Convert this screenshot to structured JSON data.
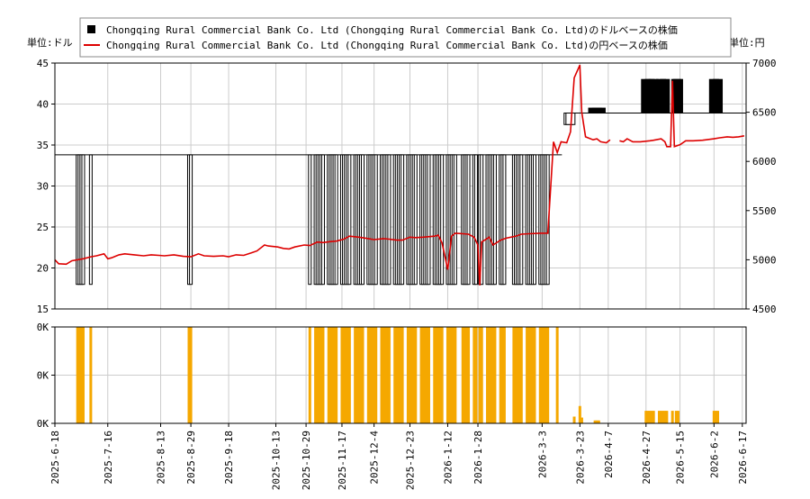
{
  "chart_data": [
    {
      "type": "bar+line",
      "title": "",
      "left_axis_unit": "単位:ドル",
      "right_axis_unit": "単位:円",
      "legend": {
        "placement": "top",
        "entries": [
          {
            "label": "Chongqing Rural Commercial Bank Co. Ltd (Chongqing Rural Commercial Bank Co. Ltd)のドルベースの株価",
            "color": "#000000",
            "kind": "candle"
          },
          {
            "label": "Chongqing Rural Commercial Bank Co. Ltd (Chongqing Rural Commercial Bank Co. Ltd)の円ベースの株価",
            "color": "#dd0000",
            "kind": "line"
          }
        ]
      },
      "ylim_left": [
        15,
        45
      ],
      "yticks_left": [
        "15",
        "20",
        "25",
        "30",
        "35",
        "40",
        "45"
      ],
      "ylim_right": [
        4500,
        7000
      ],
      "yticks_right": [
        "4500",
        "5000",
        "5500",
        "6000",
        "6500",
        "7000"
      ],
      "grid": true,
      "usd_candles": {
        "groups": [
          {
            "from": "2025-06-30",
            "to": "2025-07-03"
          },
          {
            "from": "2025-07-07",
            "to": "2025-07-07"
          },
          {
            "from": "2025-08-28",
            "to": "2025-08-29"
          },
          {
            "from": "2025-10-31",
            "to": "2026-01-16"
          },
          {
            "from": "2026-01-20",
            "to": "2026-01-27"
          },
          {
            "from": "2026-01-29",
            "to": "2026-02-11"
          },
          {
            "from": "2026-02-16",
            "to": "2026-03-06"
          }
        ],
        "open": 33.8,
        "close": 33.8,
        "high": 33.8,
        "low": 18.0,
        "reference_price": 33.8,
        "late_candles": [
          {
            "date": "2026-03-17",
            "open": 38.9,
            "close": 37.5,
            "high": 38.9,
            "low": 37.5
          },
          {
            "date": "2026-03-18",
            "open": 38.9,
            "close": 37.5,
            "high": 38.9,
            "low": 37.5
          },
          {
            "date": "2026-03-30",
            "open": 38.9,
            "close": 39.5,
            "high": 39.5,
            "low": 38.9
          },
          {
            "date": "2026-04-01",
            "open": 38.9,
            "close": 39.5,
            "high": 39.5,
            "low": 38.9
          },
          {
            "date": "2026-04-03",
            "open": 38.9,
            "close": 39.5,
            "high": 39.5,
            "low": 38.9
          },
          {
            "date": "2026-04-27",
            "open": 38.9,
            "close": 43.0,
            "high": 43.0,
            "low": 38.9
          },
          {
            "date": "2026-04-29",
            "open": 38.9,
            "close": 43.0,
            "high": 43.0,
            "low": 38.9
          },
          {
            "date": "2026-05-01",
            "open": 38.9,
            "close": 43.0,
            "high": 43.0,
            "low": 38.9
          },
          {
            "date": "2026-05-05",
            "open": 38.9,
            "close": 43.0,
            "high": 43.0,
            "low": 38.9
          },
          {
            "date": "2026-05-07",
            "open": 38.9,
            "close": 43.0,
            "high": 43.0,
            "low": 38.9
          },
          {
            "date": "2026-05-13",
            "open": 38.9,
            "close": 43.0,
            "high": 43.0,
            "low": 38.9
          },
          {
            "date": "2026-05-14",
            "open": 38.9,
            "close": 43.0,
            "high": 43.0,
            "low": 38.9
          },
          {
            "date": "2026-06-02",
            "open": 38.9,
            "close": 43.0,
            "high": 43.0,
            "low": 38.9
          },
          {
            "date": "2026-06-04",
            "open": 38.9,
            "close": 43.0,
            "high": 43.0,
            "low": 38.9
          }
        ],
        "late_reference_price": 38.9,
        "late_reference_from": "2026-03-16"
      },
      "jpy_line": [
        [
          "2025-06-18",
          5000
        ],
        [
          "2025-06-20",
          4960
        ],
        [
          "2025-06-24",
          4955
        ],
        [
          "2025-06-27",
          4990
        ],
        [
          "2025-07-03",
          5010
        ],
        [
          "2025-07-07",
          5030
        ],
        [
          "2025-07-10",
          5040
        ],
        [
          "2025-07-14",
          5060
        ],
        [
          "2025-07-16",
          5010
        ],
        [
          "2025-07-18",
          5020
        ],
        [
          "2025-07-22",
          5050
        ],
        [
          "2025-07-25",
          5060
        ],
        [
          "2025-07-30",
          5050
        ],
        [
          "2025-08-04",
          5040
        ],
        [
          "2025-08-08",
          5050
        ],
        [
          "2025-08-12",
          5045
        ],
        [
          "2025-08-15",
          5040
        ],
        [
          "2025-08-20",
          5050
        ],
        [
          "2025-08-25",
          5035
        ],
        [
          "2025-08-29",
          5030
        ],
        [
          "2025-09-02",
          5060
        ],
        [
          "2025-09-05",
          5040
        ],
        [
          "2025-09-10",
          5035
        ],
        [
          "2025-09-15",
          5040
        ],
        [
          "2025-09-18",
          5030
        ],
        [
          "2025-09-22",
          5050
        ],
        [
          "2025-09-26",
          5045
        ],
        [
          "2025-09-30",
          5070
        ],
        [
          "2025-10-03",
          5090
        ],
        [
          "2025-10-07",
          5150
        ],
        [
          "2025-10-09",
          5140
        ],
        [
          "2025-10-14",
          5130
        ],
        [
          "2025-10-17",
          5115
        ],
        [
          "2025-10-20",
          5110
        ],
        [
          "2025-10-23",
          5130
        ],
        [
          "2025-10-28",
          5150
        ],
        [
          "2025-10-31",
          5145
        ],
        [
          "2025-11-04",
          5180
        ],
        [
          "2025-11-07",
          5175
        ],
        [
          "2025-11-11",
          5185
        ],
        [
          "2025-11-14",
          5190
        ],
        [
          "2025-11-18",
          5210
        ],
        [
          "2025-11-21",
          5240
        ],
        [
          "2025-11-26",
          5230
        ],
        [
          "2025-12-01",
          5215
        ],
        [
          "2025-12-04",
          5205
        ],
        [
          "2025-12-09",
          5215
        ],
        [
          "2025-12-12",
          5210
        ],
        [
          "2025-12-16",
          5200
        ],
        [
          "2025-12-19",
          5200
        ],
        [
          "2025-12-23",
          5230
        ],
        [
          "2025-12-26",
          5225
        ],
        [
          "2025-12-30",
          5230
        ],
        [
          "2026-01-05",
          5240
        ],
        [
          "2026-01-07",
          5250
        ],
        [
          "2026-01-09",
          5170
        ],
        [
          "2026-01-12",
          4900
        ],
        [
          "2026-01-14",
          5240
        ],
        [
          "2026-01-16",
          5270
        ],
        [
          "2026-01-20",
          5265
        ],
        [
          "2026-01-23",
          5260
        ],
        [
          "2026-01-26",
          5230
        ],
        [
          "2026-01-28",
          5150
        ],
        [
          "2026-01-29",
          4740
        ],
        [
          "2026-01-30",
          5180
        ],
        [
          "2026-02-03",
          5230
        ],
        [
          "2026-02-05",
          5150
        ],
        [
          "2026-02-09",
          5200
        ],
        [
          "2026-02-12",
          5220
        ],
        [
          "2026-02-17",
          5240
        ],
        [
          "2026-02-20",
          5260
        ],
        [
          "2026-02-24",
          5265
        ],
        [
          "2026-03-02",
          5270
        ],
        [
          "2026-03-06",
          5270
        ],
        [
          "2026-03-09",
          6200
        ],
        [
          "2026-03-11",
          6090
        ],
        [
          "2026-03-13",
          6200
        ],
        [
          "2026-03-16",
          6190
        ],
        [
          "2026-03-18",
          6300
        ],
        [
          "2026-03-20",
          6850
        ],
        [
          "2026-03-23",
          6980
        ],
        [
          "2026-03-24",
          6500
        ],
        [
          "2026-03-26",
          6250
        ],
        [
          "2026-03-30",
          6220
        ],
        [
          "2026-04-01",
          6230
        ],
        [
          "2026-04-03",
          6200
        ],
        [
          "2026-04-06",
          6190
        ],
        [
          "2026-04-08",
          6220
        ],
        [
          "2026-04-13",
          6210
        ],
        [
          "2026-04-15",
          6200
        ],
        [
          "2026-04-17",
          6230
        ],
        [
          "2026-04-20",
          6200
        ],
        [
          "2026-04-24",
          6200
        ],
        [
          "2026-04-29",
          6210
        ],
        [
          "2026-05-01",
          6215
        ],
        [
          "2026-05-05",
          6230
        ],
        [
          "2026-05-07",
          6200
        ],
        [
          "2026-05-08",
          6150
        ],
        [
          "2026-05-10",
          6150
        ],
        [
          "2026-05-11",
          6820
        ],
        [
          "2026-05-12",
          6150
        ],
        [
          "2026-05-15",
          6170
        ],
        [
          "2026-05-18",
          6210
        ],
        [
          "2026-05-22",
          6210
        ],
        [
          "2026-05-27",
          6215
        ],
        [
          "2026-06-02",
          6230
        ],
        [
          "2026-06-05",
          6240
        ],
        [
          "2026-06-09",
          6250
        ],
        [
          "2026-06-12",
          6245
        ],
        [
          "2026-06-15",
          6250
        ],
        [
          "2026-06-18",
          6260
        ]
      ],
      "jpy_line_gaps": [
        [
          "2026-04-08",
          "2026-04-13"
        ]
      ]
    },
    {
      "type": "bar",
      "series_name": "",
      "color": "#f5a800",
      "yticks": [
        "0K",
        "0K",
        "0K"
      ],
      "ylim": [
        0,
        1
      ],
      "volume_full_ranges": [
        {
          "from": "2025-06-30",
          "to": "2025-07-03"
        },
        {
          "from": "2025-07-07",
          "to": "2025-07-07"
        },
        {
          "from": "2025-08-28",
          "to": "2025-08-29"
        },
        {
          "from": "2025-10-31",
          "to": "2026-01-16"
        },
        {
          "from": "2026-01-20",
          "to": "2026-01-27"
        },
        {
          "from": "2026-01-29",
          "to": "2026-02-11"
        },
        {
          "from": "2026-02-16",
          "to": "2026-03-06"
        }
      ],
      "volume_points": [
        [
          "2026-03-11",
          1.0
        ],
        [
          "2026-03-20",
          0.07
        ],
        [
          "2026-03-23",
          0.18
        ],
        [
          "2026-03-24",
          0.06
        ],
        [
          "2026-03-31",
          0.03
        ],
        [
          "2026-04-01",
          0.03
        ],
        [
          "2026-04-02",
          0.03
        ],
        [
          "2026-04-27",
          0.13
        ],
        [
          "2026-04-28",
          0.13
        ],
        [
          "2026-04-29",
          0.13
        ],
        [
          "2026-04-30",
          0.13
        ],
        [
          "2026-05-01",
          0.13
        ],
        [
          "2026-05-04",
          0.13
        ],
        [
          "2026-05-05",
          0.13
        ],
        [
          "2026-05-06",
          0.13
        ],
        [
          "2026-05-07",
          0.13
        ],
        [
          "2026-05-08",
          0.13
        ],
        [
          "2026-05-11",
          0.13
        ],
        [
          "2026-05-13",
          0.13
        ],
        [
          "2026-05-14",
          0.13
        ],
        [
          "2026-06-02",
          0.13
        ],
        [
          "2026-06-03",
          0.13
        ],
        [
          "2026-06-04",
          0.13
        ]
      ]
    }
  ],
  "x_axis": {
    "start": "2025-06-18",
    "end": "2026-06-19",
    "tick_labels": [
      "2025-6-18",
      "2025-7-16",
      "2025-8-13",
      "2025-8-29",
      "2025-9-18",
      "2025-10-13",
      "2025-10-29",
      "2025-11-17",
      "2025-12-4",
      "2025-12-23",
      "2026-1-12",
      "2026-1-28",
      "2026-3-3",
      "2026-3-23",
      "2026-4-7",
      "2026-4-27",
      "2026-5-15",
      "2026-6-2",
      "2026-6-17"
    ],
    "tick_dates": [
      "2025-06-18",
      "2025-07-16",
      "2025-08-13",
      "2025-08-29",
      "2025-09-18",
      "2025-10-13",
      "2025-10-29",
      "2025-11-17",
      "2025-12-04",
      "2025-12-23",
      "2026-01-12",
      "2026-01-28",
      "2026-03-03",
      "2026-03-23",
      "2026-04-07",
      "2026-04-27",
      "2026-05-15",
      "2026-06-02",
      "2026-06-17"
    ]
  },
  "colors": {
    "candle": "#000000",
    "jpy_line": "#dd0000",
    "volume": "#f5a800",
    "grid": "#cccccc"
  }
}
